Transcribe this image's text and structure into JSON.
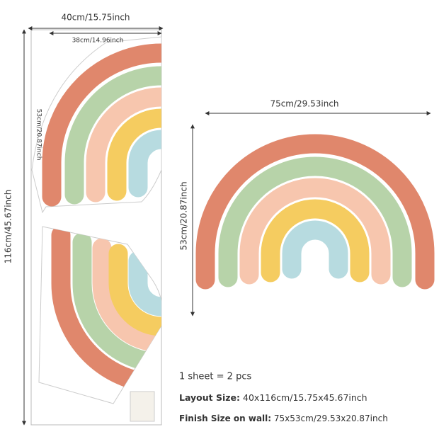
{
  "dimensions": {
    "sheet_width": "40cm/15.75inch",
    "inner_width": "38cm/14.96inch",
    "half_height": "53cm/20.87inch",
    "sheet_height": "116cm/45.67inch",
    "rainbow_width": "75cm/29.53inch",
    "rainbow_height": "53cm/20.87inch"
  },
  "pieces": "1 sheet = 2 pcs",
  "specs": [
    {
      "label": "Layout Size:",
      "value": "40x116cm/15.75x45.67inch"
    },
    {
      "label": "Finish Size on wall:",
      "value": "75x53cm/29.53x20.87inch"
    }
  ]
}
